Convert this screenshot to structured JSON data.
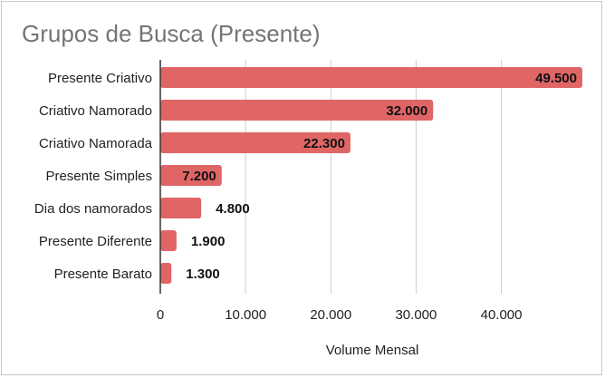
{
  "chart_data": {
    "type": "bar",
    "orientation": "horizontal",
    "title": "Grupos de Busca (Presente)",
    "xlabel": "Volume Mensal",
    "ylabel": "",
    "categories": [
      "Presente Criativo",
      "Criativo Namorado",
      "Criativo Namorada",
      "Presente Simples",
      "Dia dos namorados",
      "Presente Diferente",
      "Presente Barato"
    ],
    "values": [
      49500,
      32000,
      22300,
      7200,
      4800,
      1900,
      1300
    ],
    "value_labels": [
      "49.500",
      "32.000",
      "22.300",
      "7.200",
      "4.800",
      "1.900",
      "1.300"
    ],
    "xlim": [
      0,
      49500
    ],
    "xticks": [
      0,
      10000,
      20000,
      30000,
      40000
    ],
    "xtick_labels": [
      "0",
      "10.000",
      "20.000",
      "30.000",
      "40.000"
    ],
    "grid": true,
    "legend": "none",
    "bar_color": "#e06666"
  }
}
